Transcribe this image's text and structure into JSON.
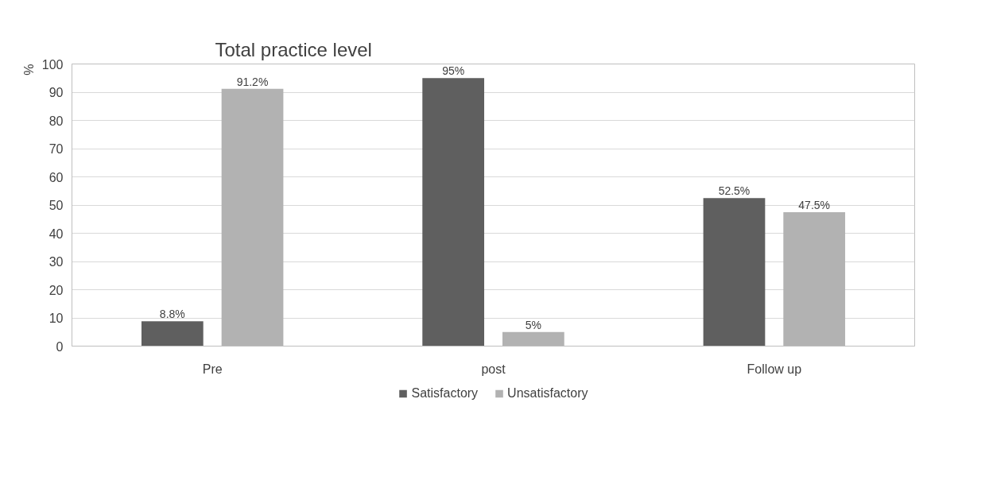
{
  "chart_data": {
    "type": "bar",
    "title": "Total practice level",
    "ylabel": "%",
    "categories": [
      "Pre",
      "post",
      "Follow up"
    ],
    "series": [
      {
        "name": "Satisfactory",
        "color": "#5f5f5f",
        "values": [
          8.8,
          95,
          52.5
        ],
        "value_labels": [
          "8.8%",
          "95%",
          "52.5%"
        ]
      },
      {
        "name": "Unsatisfactory",
        "color": "#b2b2b2",
        "values": [
          91.2,
          5,
          47.5
        ],
        "value_labels": [
          "91.2%",
          "5%",
          "47.5%"
        ]
      }
    ],
    "ylim": [
      0,
      100
    ],
    "yticks": [
      0,
      10,
      20,
      30,
      40,
      50,
      60,
      70,
      80,
      90,
      100
    ],
    "grid": "y",
    "legend": "bottom"
  }
}
